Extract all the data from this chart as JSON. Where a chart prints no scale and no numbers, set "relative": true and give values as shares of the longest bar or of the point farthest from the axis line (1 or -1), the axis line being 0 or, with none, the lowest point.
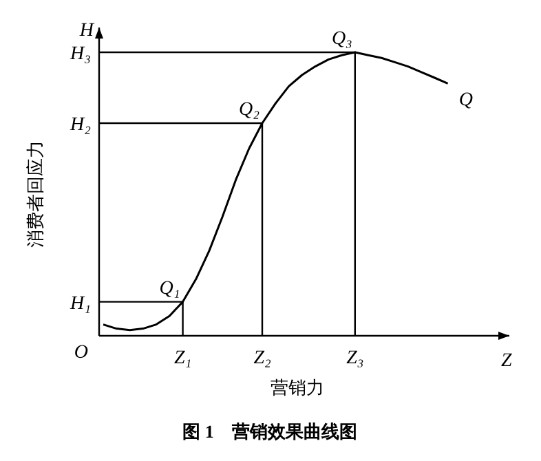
{
  "chart_data": {
    "type": "line",
    "relative": true,
    "title": "图 1　营销效果曲线图",
    "xlabel": "营销力",
    "ylabel": "消费者回应力",
    "categories": [
      null,
      null,
      null,
      null,
      null,
      null,
      "Z₁",
      null,
      null,
      null,
      null,
      null,
      "Z₂",
      null,
      null,
      null,
      null,
      null,
      null,
      "Z₃",
      null,
      null,
      null,
      null,
      null,
      null,
      null
    ],
    "series": [
      {
        "color": "#000000",
        "values": [
          0.04,
          0.025,
          0.02,
          0.025,
          0.04,
          0.07,
          0.12,
          0.2,
          0.3,
          0.42,
          0.55,
          0.66,
          0.75,
          0.82,
          0.88,
          0.92,
          0.95,
          0.975,
          0.99,
          1,
          0.99,
          0.98,
          0.965,
          0.95,
          0.93,
          0.91,
          0.89
        ]
      }
    ],
    "ref_lines": [
      {
        "axis": "y",
        "value": 0.12,
        "label": "H₁",
        "color": "#000000"
      },
      {
        "axis": "y",
        "value": 0.75,
        "label": "H₂",
        "color": "#000000"
      },
      {
        "axis": "y",
        "value": 1,
        "label": "H₃",
        "color": "#000000"
      }
    ],
    "annotations": [
      {
        "text": "Q₁",
        "x": "Z₁",
        "y": 0.12
      },
      {
        "text": "Q₂",
        "x": "Z₂",
        "y": 0.75
      },
      {
        "text": "Q₃",
        "x": "Z₃",
        "y": 1
      },
      "Q",
      "O",
      "H",
      "Z"
    ],
    "marker": "none",
    "line_style": "solid",
    "grid": false
  }
}
